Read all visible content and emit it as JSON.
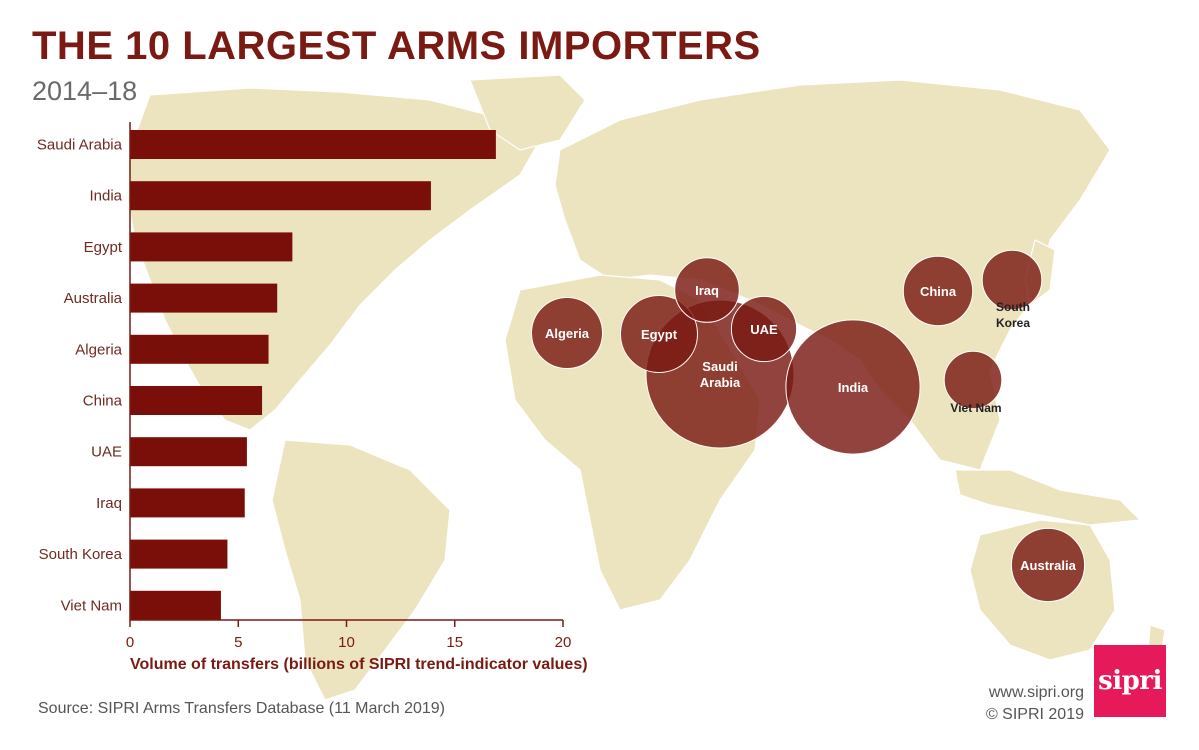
{
  "header": {
    "title": "THE 10 LARGEST ARMS IMPORTERS",
    "subtitle": "2014–18"
  },
  "footer": {
    "source": "Source: SIPRI Arms Transfers Database (11 March 2019)",
    "website": "www.sipri.org",
    "copyright": "© SIPRI 2019",
    "logo_text": "sipri"
  },
  "colors": {
    "bar": "#7a0f0a",
    "bubble": "#7a1a12",
    "land": "#ece3bf",
    "accent": "#e6195a"
  },
  "chart_data": {
    "type": "bar",
    "orientation": "horizontal",
    "categories": [
      "Saudi Arabia",
      "India",
      "Egypt",
      "Australia",
      "Algeria",
      "China",
      "UAE",
      "Iraq",
      "South Korea",
      "Viet Nam"
    ],
    "values": [
      16.9,
      13.9,
      7.5,
      6.8,
      6.4,
      6.1,
      5.4,
      5.3,
      4.5,
      4.2
    ],
    "xlabel": "Volume of transfers (billions of SIPRI trend-indicator values)",
    "xlim": [
      0,
      20
    ],
    "xticks": [
      0,
      5,
      10,
      15,
      20
    ],
    "grid": false,
    "map_bubbles": [
      {
        "label": "Saudi Arabia",
        "value": 16.9
      },
      {
        "label": "India",
        "value": 13.9
      },
      {
        "label": "Egypt",
        "value": 7.5
      },
      {
        "label": "Australia",
        "value": 6.8
      },
      {
        "label": "Algeria",
        "value": 6.4
      },
      {
        "label": "China",
        "value": 6.1
      },
      {
        "label": "UAE",
        "value": 5.4
      },
      {
        "label": "Iraq",
        "value": 5.3
      },
      {
        "label": "South Korea",
        "value": 4.5
      },
      {
        "label": "Viet Nam",
        "value": 4.2
      }
    ]
  }
}
